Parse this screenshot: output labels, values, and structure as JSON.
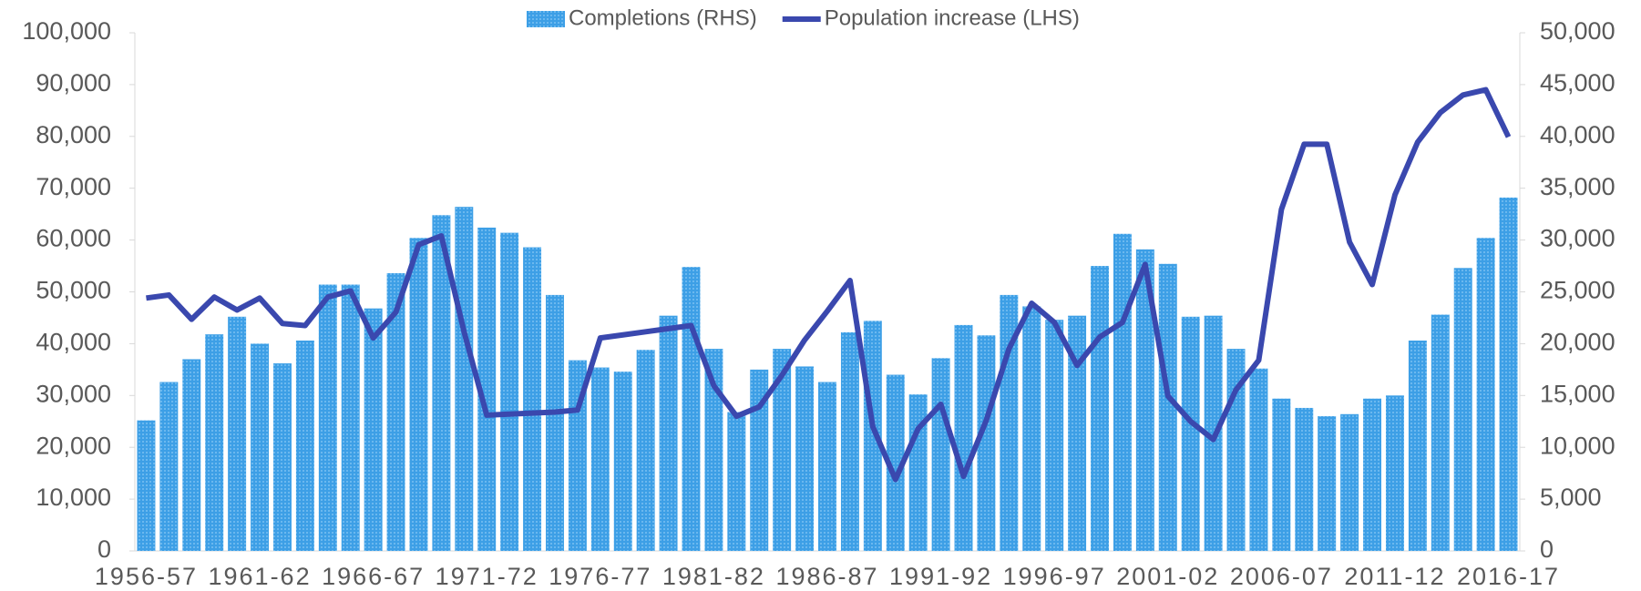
{
  "chart_data": {
    "type": "bar_line",
    "categories": [
      "1956-57",
      null,
      null,
      null,
      null,
      "1961-62",
      null,
      null,
      null,
      null,
      "1966-67",
      null,
      null,
      null,
      null,
      "1971-72",
      null,
      null,
      null,
      null,
      "1976-77",
      null,
      null,
      null,
      null,
      "1981-82",
      null,
      null,
      null,
      null,
      "1986-87",
      null,
      null,
      null,
      null,
      "1991-92",
      null,
      null,
      null,
      null,
      "1996-97",
      null,
      null,
      null,
      null,
      "2001-02",
      null,
      null,
      null,
      null,
      "2006-07",
      null,
      null,
      null,
      null,
      "2011-12",
      null,
      null,
      null,
      null,
      "2016-17"
    ],
    "series": [
      {
        "name": "Completions (RHS)",
        "kind": "bar",
        "axis": "y2",
        "color": "#3d9fe6",
        "values": [
          12600,
          16300,
          18500,
          20900,
          22600,
          20000,
          18100,
          20300,
          25700,
          25700,
          23400,
          26800,
          30200,
          32400,
          33200,
          31200,
          30700,
          29300,
          24700,
          18400,
          17700,
          17300,
          19400,
          22700,
          27400,
          19500,
          13400,
          17500,
          19500,
          17800,
          16300,
          21100,
          22200,
          17000,
          15100,
          18600,
          21800,
          20800,
          24700,
          23600,
          22300,
          22700,
          27500,
          30600,
          29100,
          27700,
          22600,
          22700,
          19500,
          17600,
          14700,
          13800,
          13000,
          13200,
          14700,
          15000,
          20300,
          22800,
          27300,
          30200,
          34100
        ]
      },
      {
        "name": "Population increase (LHS)",
        "kind": "line",
        "axis": "y",
        "color": "#3a48ae",
        "values": [
          48800,
          49400,
          44700,
          49000,
          46500,
          48800,
          43900,
          43500,
          49000,
          50200,
          41100,
          46100,
          59100,
          60800,
          42300,
          26200,
          26400,
          26600,
          26800,
          27200,
          41100,
          41700,
          42300,
          42900,
          43500,
          31900,
          26000,
          27800,
          33900,
          40700,
          46300,
          52200,
          24000,
          13800,
          23600,
          28300,
          14400,
          25200,
          39000,
          47800,
          44100,
          35800,
          41300,
          44100,
          55300,
          29900,
          25000,
          21500,
          31100,
          36800,
          65900,
          78500,
          78500,
          59600,
          51400,
          68700,
          78900,
          84600,
          88000,
          89000,
          79900
        ]
      }
    ],
    "ylim": [
      0,
      100000
    ],
    "yticks": [
      0,
      {
        "value": 10000,
        "label": "10,000"
      },
      {
        "value": 20000,
        "label": "20,000"
      },
      {
        "value": 30000,
        "label": "30,000"
      },
      {
        "value": 40000,
        "label": "40,000"
      },
      {
        "value": 50000,
        "label": "50,000"
      },
      {
        "value": 60000,
        "label": "60,000"
      },
      {
        "value": 70000,
        "label": "70,000"
      },
      {
        "value": 80000,
        "label": "80,000"
      },
      {
        "value": 90000,
        "label": "90,000"
      },
      {
        "value": 100000,
        "label": "100,000"
      }
    ],
    "y2lim": [
      0,
      50000
    ],
    "y2ticks": [
      0,
      {
        "value": 5000,
        "label": "5,000"
      },
      {
        "value": 10000,
        "label": "10,000"
      },
      {
        "value": 15000,
        "label": "15,000"
      },
      {
        "value": 20000,
        "label": "20,000"
      },
      {
        "value": 25000,
        "label": "25,000"
      },
      {
        "value": 30000,
        "label": "30,000"
      },
      {
        "value": 35000,
        "label": "35,000"
      },
      {
        "value": 40000,
        "label": "40,000"
      },
      {
        "value": 45000,
        "label": "45,000"
      },
      {
        "value": 50000,
        "label": "50,000"
      }
    ],
    "legend": "top"
  }
}
